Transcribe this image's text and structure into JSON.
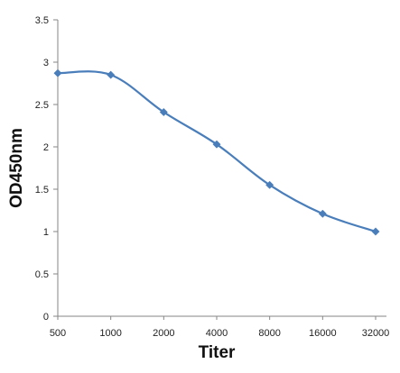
{
  "chart_data": {
    "type": "line",
    "title": "",
    "xlabel": "Titer",
    "ylabel": "OD450nm",
    "categories": [
      "500",
      "1000",
      "2000",
      "4000",
      "8000",
      "16000",
      "32000"
    ],
    "series": [
      {
        "values": [
          2.87,
          2.85,
          2.41,
          2.03,
          1.55,
          1.21,
          1.0
        ]
      }
    ],
    "ylim": [
      0,
      3.5
    ],
    "yticks": [
      "0",
      "0.5",
      "1",
      "1.5",
      "2",
      "2.5",
      "3",
      "3.5"
    ],
    "grid": false,
    "legend": "none",
    "smooth": true,
    "marker": "diamond",
    "colors": {
      "series": "#4a7ebb",
      "axis": "#868686"
    }
  }
}
